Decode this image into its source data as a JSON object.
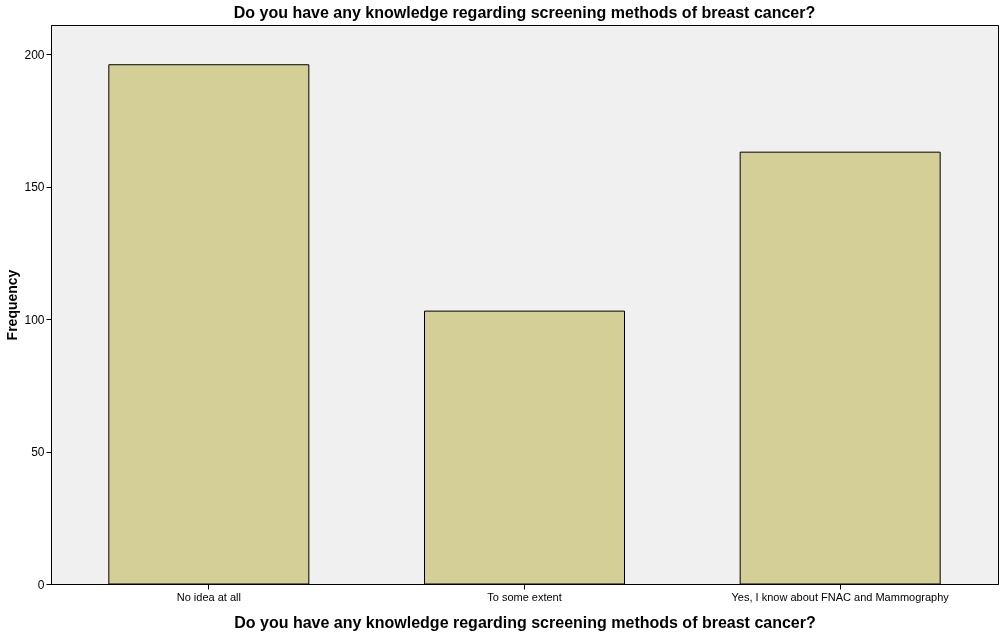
{
  "chart_data": {
    "type": "bar",
    "title": "Do you have any knowledge regarding screening methods of breast cancer?",
    "xlabel": "Do you have any knowledge regarding screening methods of breast cancer?",
    "ylabel": "Frequency",
    "categories": [
      "No idea at all",
      "To some extent",
      "Yes, I know about FNAC and Mammography"
    ],
    "values": [
      196,
      103,
      163
    ],
    "color": "#d4cf97",
    "ylim": [
      0,
      211
    ],
    "yticks": [
      0,
      50,
      100,
      150,
      200
    ],
    "grid": false
  }
}
